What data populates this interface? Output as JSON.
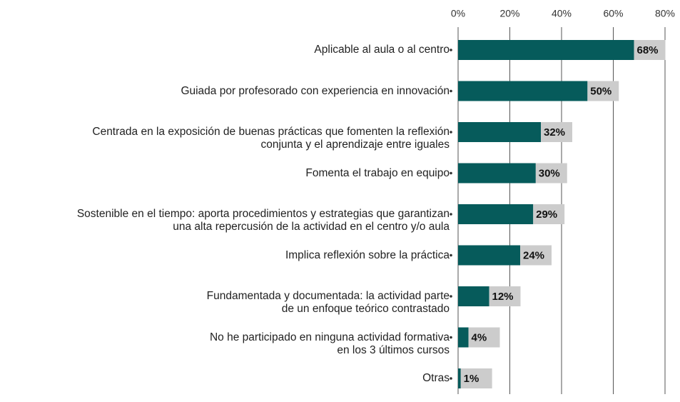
{
  "chart_data": {
    "type": "bar",
    "orientation": "horizontal",
    "categories": [
      "Aplicable al aula o al centro",
      "Guiada por profesorado con experiencia en innovación",
      "Centrada en la exposición de buenas prácticas que fomenten la reflexión\nconjunta y el aprendizaje entre iguales",
      "Fomenta el trabajo en equipo",
      "Sostenible en el tiempo: aporta procedimientos y estrategias que garantizan\nuna alta repercusión de la actividad en el centro y/o aula",
      "Implica reflexión sobre la práctica",
      "Fundamentada y documentada: la actividad parte\nde un enfoque teórico contrastado",
      "No he participado en ninguna actividad formativa\nen los 3 últimos cursos",
      "Otras"
    ],
    "values": [
      68,
      50,
      32,
      30,
      29,
      24,
      12,
      4,
      1
    ],
    "value_labels": [
      "68%",
      "50%",
      "32%",
      "30%",
      "29%",
      "24%",
      "12%",
      "4%",
      "1%"
    ],
    "color": "#065b5b",
    "xlim": [
      0,
      80
    ],
    "xticks": [
      {
        "value": 0,
        "label": "0%"
      },
      {
        "value": 20,
        "label": "20%"
      },
      {
        "value": 40,
        "label": "40%"
      },
      {
        "value": 60,
        "label": "60%"
      },
      {
        "value": 80,
        "label": "80%"
      }
    ],
    "grid": true
  }
}
